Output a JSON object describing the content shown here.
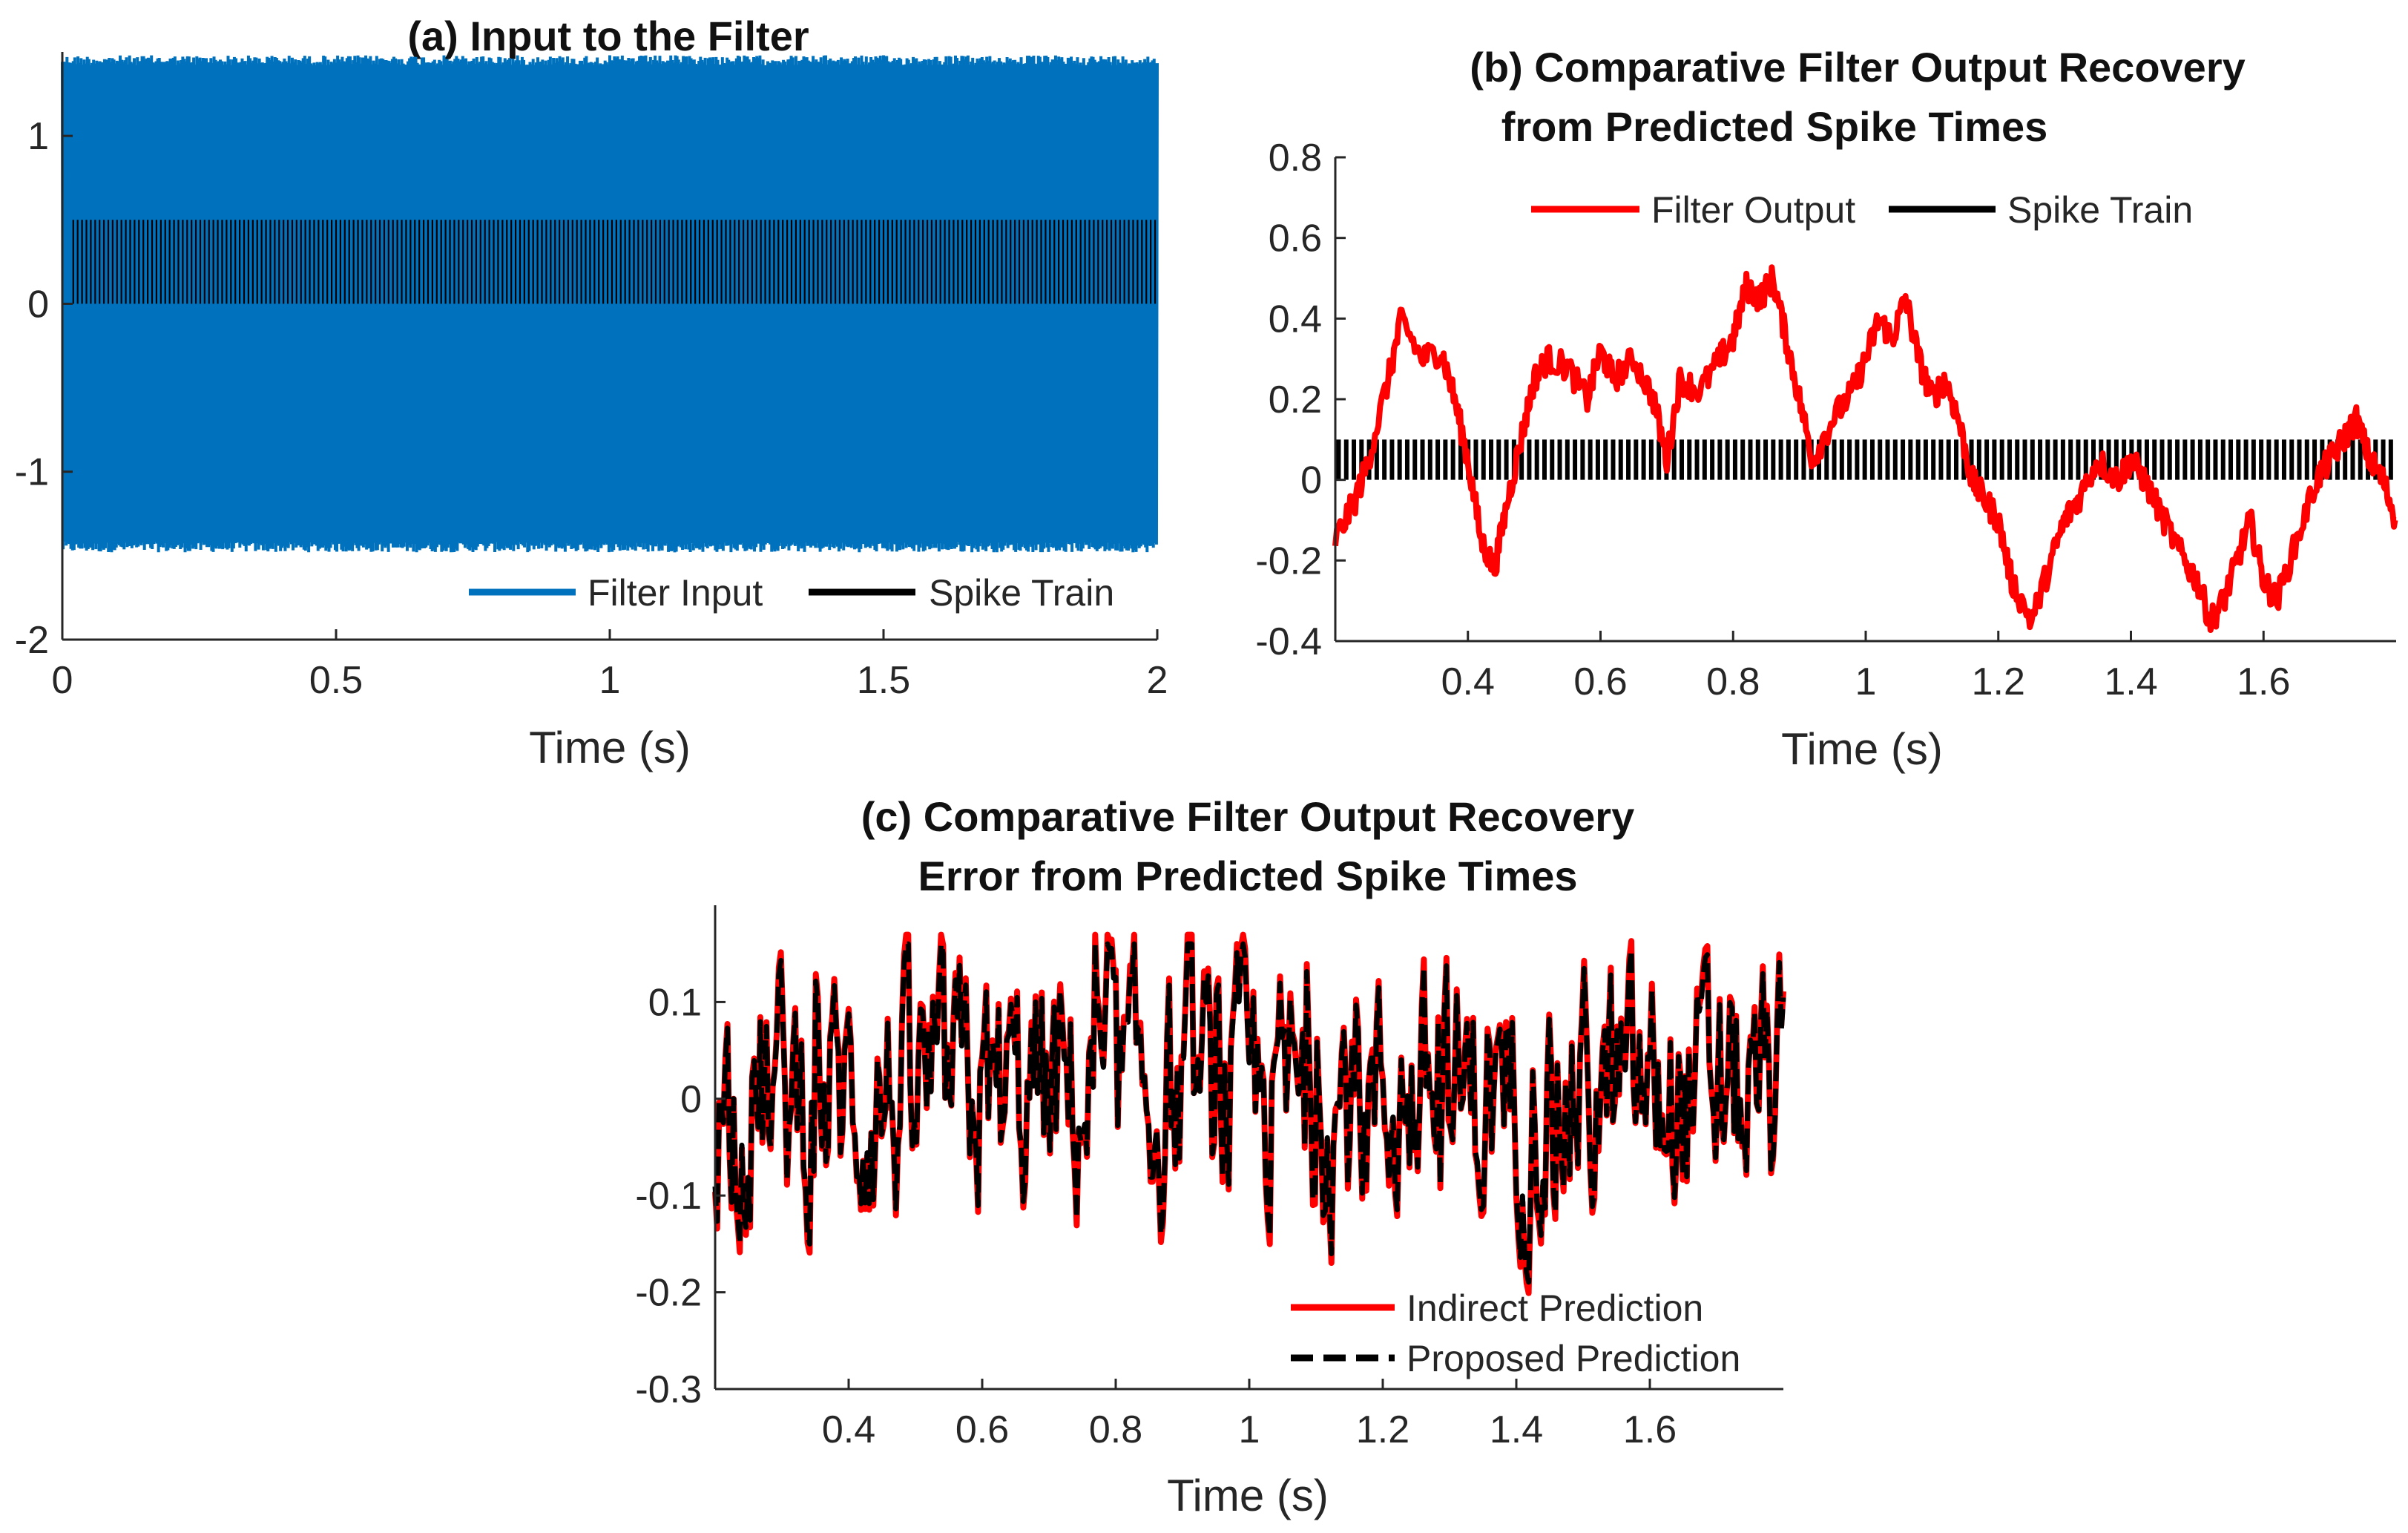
{
  "chart_data": [
    {
      "id": "a",
      "type": "line",
      "title": "(a) Input to the Filter",
      "xlabel": "Time (s)",
      "ylabel": "",
      "xlim": [
        0,
        2
      ],
      "ylim": [
        -2,
        1.5
      ],
      "xticks": [
        "0",
        "0.5",
        "1",
        "1.5",
        "2"
      ],
      "yticks": [
        "1",
        "0",
        "-1",
        "-2"
      ],
      "xtick_values": [
        0,
        0.5,
        1,
        1.5,
        2
      ],
      "ytick_values": [
        1,
        0,
        -1,
        -2
      ],
      "legend_position": "bottom-right",
      "series": [
        {
          "name": "Filter Input",
          "color": "#0072bd",
          "amplitude_band": [
            -1.48,
            1.48
          ]
        },
        {
          "name": "Spike Train",
          "color": "#000000",
          "spike_height": 0.5,
          "spike_band_x": [
            0.02,
            2.0
          ]
        }
      ]
    },
    {
      "id": "b",
      "type": "line",
      "title": "(b) Comparative Filter Output Recovery",
      "subtitle": "from Predicted Spike Times",
      "xlabel": "Time (s)",
      "ylabel": "",
      "xlim": [
        0.2,
        1.8
      ],
      "ylim": [
        -0.4,
        0.8
      ],
      "xticks": [
        "0.4",
        "0.6",
        "0.8",
        "1",
        "1.2",
        "1.4",
        "1.6"
      ],
      "yticks": [
        "0.8",
        "0.6",
        "0.4",
        "0.2",
        "0",
        "-0.2",
        "-0.4"
      ],
      "xtick_values": [
        0.4,
        0.6,
        0.8,
        1.0,
        1.2,
        1.4,
        1.6
      ],
      "ytick_values": [
        0.8,
        0.6,
        0.4,
        0.2,
        0,
        -0.2,
        -0.4
      ],
      "legend_position": "top",
      "series": [
        {
          "name": "Filter Output",
          "color": "#ff0000",
          "x": [
            0.2,
            0.23,
            0.25,
            0.28,
            0.3,
            0.33,
            0.36,
            0.38,
            0.4,
            0.42,
            0.44,
            0.46,
            0.48,
            0.5,
            0.52,
            0.55,
            0.58,
            0.6,
            0.62,
            0.65,
            0.68,
            0.7,
            0.72,
            0.75,
            0.78,
            0.8,
            0.82,
            0.84,
            0.86,
            0.88,
            0.9,
            0.92,
            0.95,
            0.98,
            1.0,
            1.02,
            1.04,
            1.06,
            1.08,
            1.1,
            1.12,
            1.14,
            1.16,
            1.18,
            1.2,
            1.22,
            1.25,
            1.28,
            1.3,
            1.32,
            1.35,
            1.38,
            1.4,
            1.42,
            1.45,
            1.48,
            1.5,
            1.52,
            1.54,
            1.56,
            1.58,
            1.6,
            1.62,
            1.65,
            1.68,
            1.7,
            1.72,
            1.74,
            1.76,
            1.78,
            1.8
          ],
          "y": [
            -0.15,
            -0.05,
            0.05,
            0.25,
            0.4,
            0.3,
            0.32,
            0.2,
            0.05,
            -0.15,
            -0.22,
            -0.05,
            0.1,
            0.25,
            0.3,
            0.28,
            0.2,
            0.32,
            0.25,
            0.3,
            0.2,
            0.05,
            0.25,
            0.22,
            0.3,
            0.35,
            0.48,
            0.45,
            0.5,
            0.35,
            0.2,
            0.05,
            0.15,
            0.22,
            0.3,
            0.4,
            0.35,
            0.45,
            0.3,
            0.2,
            0.25,
            0.15,
            0.0,
            -0.05,
            -0.1,
            -0.25,
            -0.35,
            -0.2,
            -0.1,
            -0.05,
            0.05,
            0.0,
            0.05,
            0.0,
            -0.1,
            -0.2,
            -0.25,
            -0.35,
            -0.3,
            -0.2,
            -0.1,
            -0.25,
            -0.3,
            -0.15,
            0.0,
            0.05,
            0.1,
            0.15,
            0.05,
            0.0,
            -0.1
          ]
        },
        {
          "name": "Spike Train",
          "color": "#000000",
          "spike_height": 0.1,
          "spike_band_x": [
            0.2,
            1.8
          ]
        }
      ]
    },
    {
      "id": "c",
      "type": "line",
      "title": "(c) Comparative Filter Output Recovery",
      "subtitle": "Error from Predicted Spike Times",
      "xlabel": "Time (s)",
      "ylabel": "",
      "xlim": [
        0.2,
        1.8
      ],
      "ylim": [
        -0.3,
        0.2
      ],
      "xticks": [
        "0.4",
        "0.6",
        "0.8",
        "1",
        "1.2",
        "1.4",
        "1.6"
      ],
      "yticks": [
        "0.1",
        "0",
        "-0.1",
        "-0.2",
        "-0.3"
      ],
      "xtick_values": [
        0.4,
        0.6,
        0.8,
        1.0,
        1.2,
        1.4,
        1.6
      ],
      "ytick_values": [
        0.1,
        0,
        -0.1,
        -0.2,
        -0.3
      ],
      "legend_position": "bottom-right",
      "series": [
        {
          "name": "Indirect Prediction",
          "color": "#ff0000",
          "line_style": "solid",
          "amplitude_band": [
            -0.19,
            0.16
          ]
        },
        {
          "name": "Proposed Prediction",
          "color": "#000000",
          "line_style": "dashed",
          "amplitude_band": [
            -0.2,
            0.16
          ]
        }
      ]
    }
  ]
}
